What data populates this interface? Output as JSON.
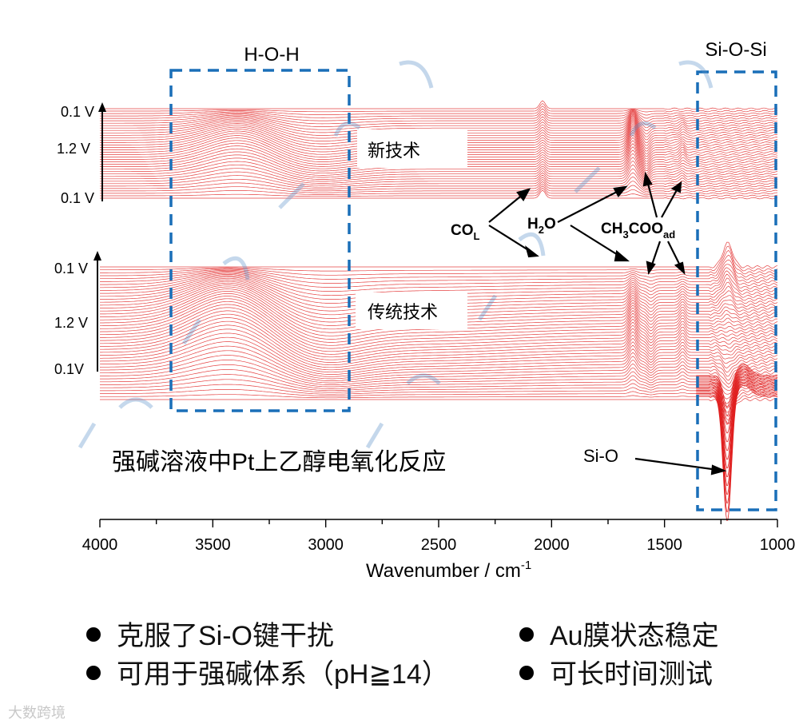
{
  "chart_data": {
    "type": "line",
    "title": "强碱溶液中Pt上乙醇电氧化反应",
    "xlabel": "Wavenumber / cm",
    "xlabel_sup": "-1",
    "xlim": [
      4000,
      1000
    ],
    "x_ticks": [
      "4000",
      "3500",
      "3000",
      "2500",
      "2000",
      "1500",
      "1000"
    ],
    "x_tick_values": [
      4000,
      3500,
      3000,
      2500,
      2000,
      1500,
      1000
    ],
    "line_color": "#e02020",
    "panels": [
      {
        "name": "新技术",
        "potential_labels": [
          "0.1 V",
          "1.2 V",
          "0.1 V"
        ],
        "features_cm1": [
          {
            "label": "H-O-H",
            "center": 3400
          },
          {
            "label": "CO_L",
            "center": 2040
          },
          {
            "label": "H2O",
            "center": 1630
          },
          {
            "label": "CH3COO_ad",
            "center": 1550
          }
        ]
      },
      {
        "name": "传统技术",
        "potential_labels": [
          "0.1 V",
          "1.2 V",
          "0.1V"
        ],
        "features_cm1": [
          {
            "label": "H-O-H",
            "center": 3400
          },
          {
            "label": "H2O",
            "center": 1640
          },
          {
            "label": "CH3COO_ad",
            "center": 1550
          },
          {
            "label": "Si-O",
            "center": 1220
          }
        ]
      }
    ],
    "regions": [
      {
        "label": "H-O-H",
        "x_range": [
          3700,
          2900
        ]
      },
      {
        "label": "Si-O-Si",
        "x_range": [
          1360,
          1000
        ]
      }
    ]
  },
  "labels": {
    "hoh": "H-O-H",
    "siosi": "Si-O-Si",
    "sio": "Si-O",
    "co_main": "CO",
    "co_sub": "L",
    "h2o_a": "H",
    "h2o_sub": "2",
    "h2o_b": "O",
    "ch3_a": "CH",
    "ch3_sub": "3",
    "ch3_b": "COO",
    "ch3_sub2": "ad",
    "top_box": "新技术",
    "bottom_box": "传统技术",
    "top_v1": "0.1 V",
    "top_v2": "1.2 V",
    "top_v3": "0.1 V",
    "bot_v1": "0.1 V",
    "bot_v2": "1.2 V",
    "bot_v3": "0.1V"
  },
  "bullets": [
    "克服了Si-O键干扰",
    "Au膜状态稳定",
    "可用于强碱体系（pH≧14）",
    "可长时间测试"
  ],
  "watermark": "大数跨境",
  "colors": {
    "accent": "#1a6fb8",
    "curve": "#e02020"
  }
}
